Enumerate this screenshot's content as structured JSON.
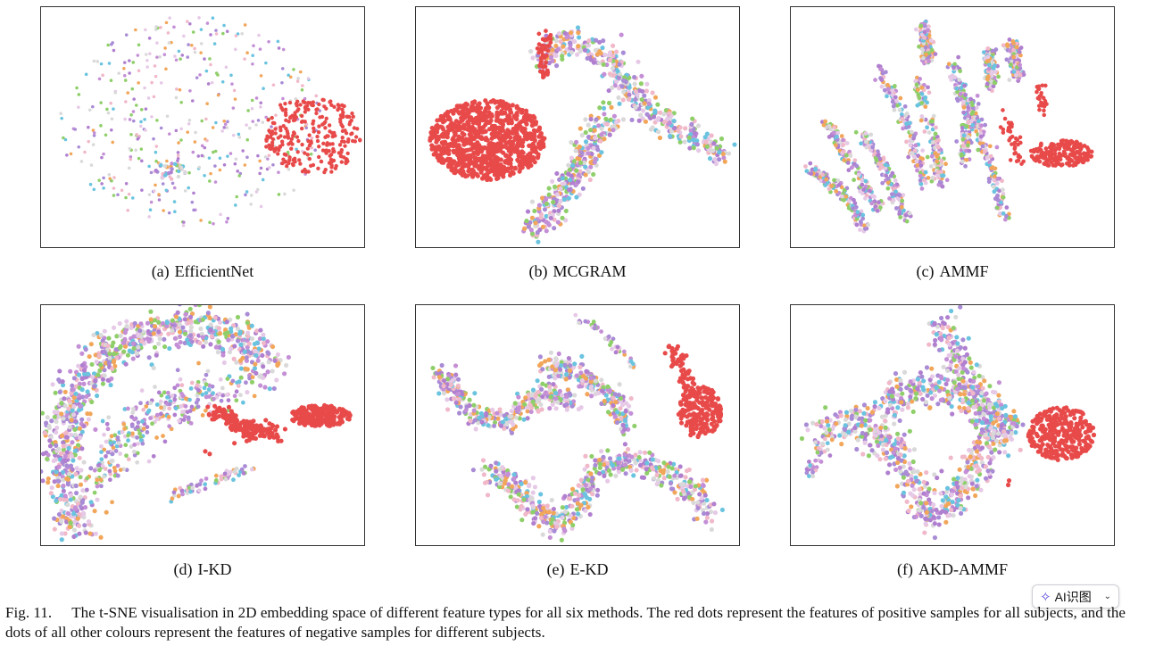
{
  "figure": {
    "panels": [
      {
        "label": "(a)",
        "name": "EfficientNet",
        "layout": "scatter-uniform"
      },
      {
        "label": "(b)",
        "name": "MCGRAM",
        "layout": "blob-band"
      },
      {
        "label": "(c)",
        "name": "AMMF",
        "layout": "strands"
      },
      {
        "label": "(d)",
        "name": "I-KD",
        "layout": "arc"
      },
      {
        "label": "(e)",
        "name": "E-KD",
        "layout": "curves"
      },
      {
        "label": "(f)",
        "name": "AKD-AMMF",
        "layout": "knot"
      }
    ],
    "caption_number": "Fig. 11.",
    "caption_text": "The t-SNE visualisation in 2D embedding space of different feature types for all six methods. The red dots represent the features of positive samples for all subjects, and the dots of all other colours represent the features of negative samples for different subjects."
  },
  "colors": {
    "positive": "#e84a4a",
    "negative": [
      "#b07fcf",
      "#c48fd6",
      "#e6c9e6",
      "#f2a65a",
      "#8fcf6a",
      "#6ac3df",
      "#d9d9d9",
      "#f0b8c8",
      "#a98bd6"
    ]
  },
  "toolbar": {
    "ai_label": "AI识图"
  }
}
